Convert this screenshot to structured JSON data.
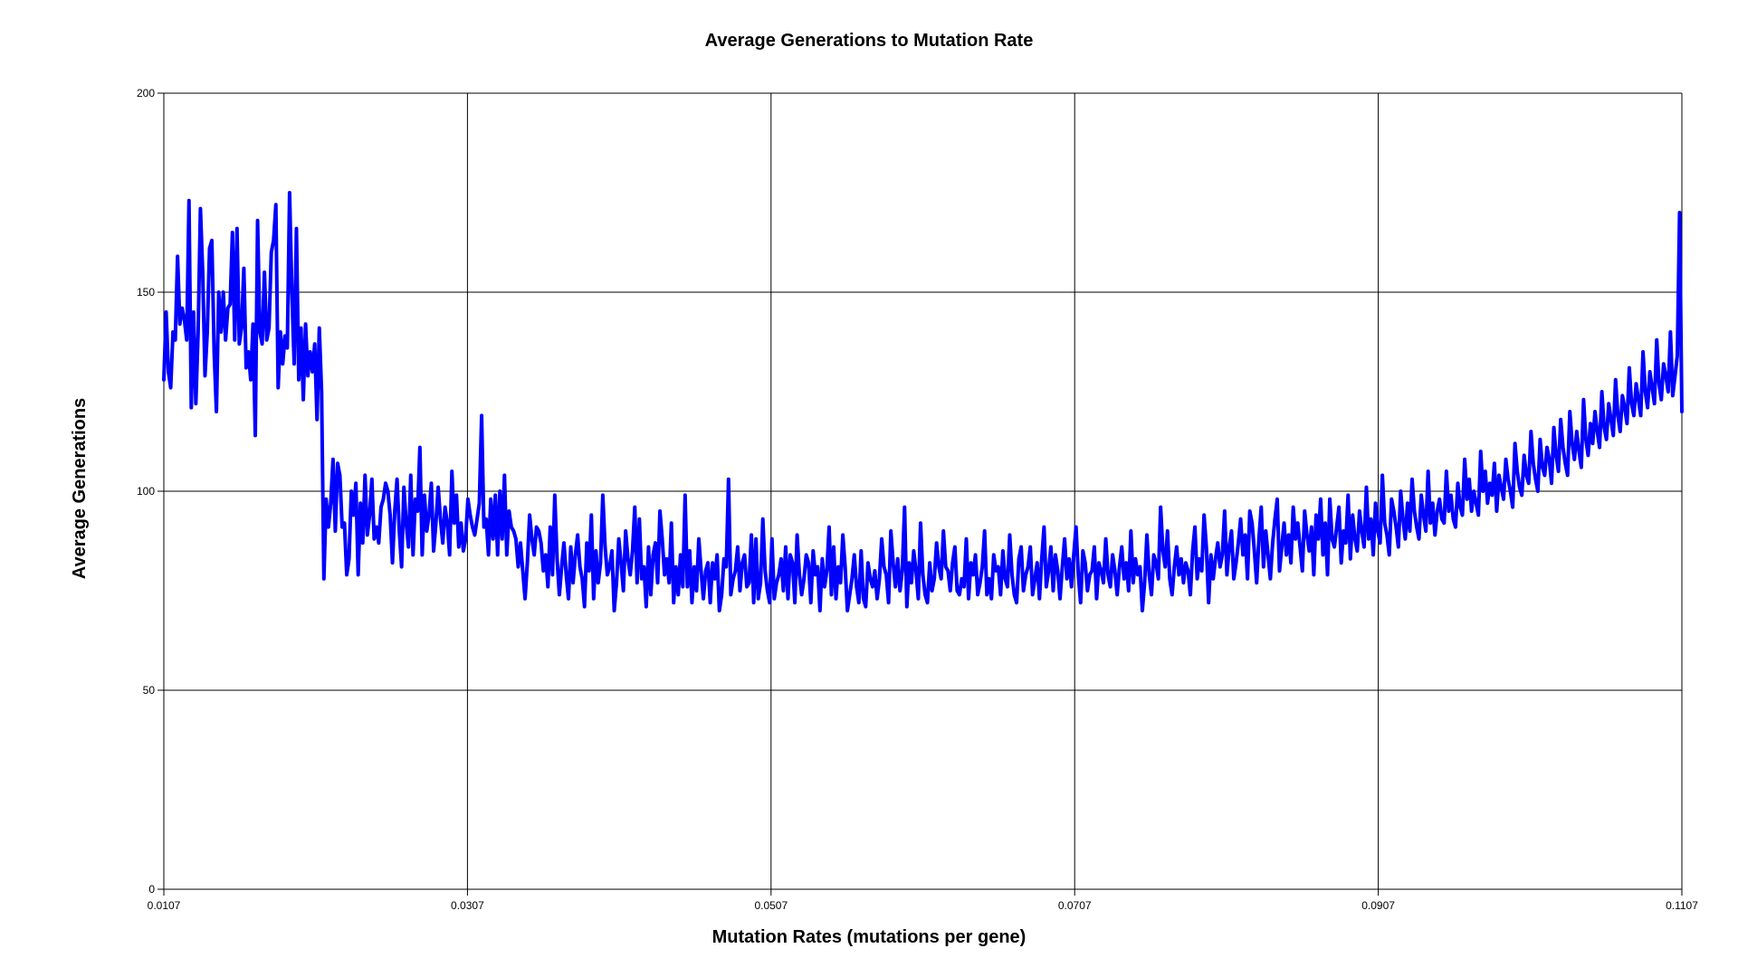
{
  "chart_data": {
    "type": "line",
    "title": "Average Generations to Mutation Rate",
    "xlabel": "Mutation Rates (mutations per gene)",
    "ylabel": "Average Generations",
    "xlim": [
      0.0107,
      0.1107
    ],
    "ylim": [
      0,
      200
    ],
    "x_ticks": [
      "0.0107",
      "0.0307",
      "0.0507",
      "0.0707",
      "0.0907",
      "0.1107"
    ],
    "y_ticks": [
      "0",
      "50",
      "100",
      "150",
      "200"
    ],
    "grid": true,
    "legend": "none",
    "series_color": "#0000ff",
    "series": [
      {
        "x_start": 0.0107,
        "x_end": 0.1107,
        "values": [
          128,
          145,
          130,
          126,
          140,
          138,
          159,
          142,
          146,
          143,
          138,
          173,
          121,
          145,
          122,
          140,
          171,
          155,
          129,
          140,
          161,
          163,
          135,
          120,
          150,
          140,
          150,
          138,
          146,
          147,
          165,
          138,
          166,
          137,
          141,
          156,
          131,
          135,
          128,
          142,
          114,
          168,
          140,
          137,
          155,
          138,
          141,
          160,
          163,
          172,
          126,
          140,
          132,
          139,
          136,
          175,
          150,
          132,
          166,
          128,
          141,
          123,
          142,
          129,
          135,
          130,
          137,
          118,
          141,
          125,
          78,
          98,
          91,
          97,
          108,
          90,
          107,
          104,
          91,
          92,
          79,
          83,
          100,
          94,
          102,
          79,
          97,
          87,
          104,
          89,
          94,
          103,
          88,
          91,
          87,
          96,
          98,
          102,
          100,
          94,
          82,
          95,
          103,
          90,
          81,
          101,
          92,
          86,
          104,
          84,
          98,
          95,
          111,
          84,
          99,
          90,
          94,
          102,
          85,
          92,
          101,
          93,
          87,
          96,
          92,
          84,
          105,
          92,
          99,
          86,
          92,
          85,
          88,
          98,
          94,
          91,
          89,
          93,
          97,
          119,
          91,
          93,
          84,
          98,
          88,
          99,
          84,
          100,
          88,
          104,
          84,
          95,
          91,
          90,
          88,
          81,
          87,
          80,
          73,
          82,
          94,
          88,
          84,
          91,
          90,
          87,
          80,
          84,
          76,
          91,
          79,
          99,
          83,
          74,
          81,
          87,
          79,
          73,
          86,
          77,
          84,
          89,
          81,
          78,
          71,
          87,
          80,
          94,
          73,
          85,
          77,
          82,
          99,
          86,
          79,
          81,
          85,
          70,
          77,
          88,
          82,
          75,
          90,
          83,
          79,
          85,
          96,
          77,
          93,
          78,
          81,
          71,
          86,
          74,
          84,
          87,
          77,
          95,
          88,
          79,
          83,
          77,
          92,
          72,
          81,
          74,
          84,
          76,
          99,
          76,
          85,
          72,
          81,
          75,
          88,
          80,
          73,
          80,
          82,
          72,
          82,
          78,
          84,
          70,
          74,
          83,
          81,
          103,
          74,
          78,
          80,
          86,
          75,
          82,
          84,
          76,
          77,
          89,
          72,
          88,
          73,
          77,
          93,
          80,
          75,
          72,
          88,
          73,
          77,
          79,
          83,
          75,
          86,
          73,
          84,
          82,
          72,
          89,
          79,
          74,
          78,
          84,
          82,
          72,
          85,
          79,
          81,
          70,
          83,
          76,
          80,
          91,
          74,
          86,
          73,
          81,
          77,
          89,
          81,
          70,
          74,
          78,
          84,
          76,
          72,
          85,
          73,
          71,
          82,
          78,
          76,
          80,
          73,
          78,
          88,
          81,
          79,
          72,
          90,
          82,
          76,
          83,
          75,
          80,
          96,
          71,
          82,
          77,
          85,
          80,
          73,
          92,
          79,
          74,
          72,
          82,
          75,
          78,
          87,
          81,
          78,
          90,
          81,
          80,
          75,
          82,
          86,
          75,
          74,
          78,
          76,
          88,
          73,
          82,
          79,
          84,
          74,
          77,
          81,
          90,
          74,
          78,
          73,
          84,
          80,
          81,
          74,
          85,
          78,
          76,
          89,
          79,
          74,
          72,
          83,
          86,
          75,
          79,
          81,
          86,
          74,
          78,
          82,
          73,
          83,
          91,
          76,
          80,
          86,
          75,
          84,
          80,
          73,
          81,
          88,
          78,
          83,
          76,
          84,
          91,
          79,
          72,
          85,
          82,
          75,
          79,
          80,
          86,
          73,
          82,
          80,
          77,
          88,
          79,
          76,
          84,
          80,
          74,
          81,
          86,
          78,
          82,
          75,
          90,
          77,
          83,
          79,
          81,
          70,
          77,
          89,
          79,
          74,
          84,
          82,
          78,
          96,
          85,
          81,
          90,
          78,
          74,
          81,
          86,
          79,
          83,
          77,
          82,
          80,
          74,
          85,
          91,
          78,
          83,
          80,
          94,
          86,
          72,
          84,
          78,
          83,
          87,
          81,
          84,
          95,
          79,
          86,
          90,
          78,
          82,
          87,
          93,
          84,
          89,
          78,
          95,
          92,
          85,
          77,
          88,
          96,
          81,
          90,
          84,
          78,
          87,
          93,
          98,
          80,
          86,
          92,
          84,
          89,
          82,
          96,
          88,
          92,
          86,
          80,
          95,
          89,
          85,
          91,
          79,
          94,
          88,
          98,
          84,
          92,
          79,
          98,
          88,
          86,
          91,
          96,
          82,
          90,
          87,
          99,
          83,
          94,
          88,
          85,
          95,
          90,
          86,
          101,
          88,
          93,
          84,
          97,
          90,
          87,
          104,
          92,
          89,
          84,
          98,
          95,
          91,
          86,
          100,
          93,
          88,
          97,
          90,
          103,
          95,
          91,
          88,
          99,
          94,
          90,
          105,
          92,
          97,
          89,
          95,
          98,
          93,
          92,
          105,
          95,
          99,
          93,
          91,
          102,
          96,
          94,
          108,
          98,
          103,
          95,
          100,
          97,
          94,
          110,
          100,
          105,
          97,
          102,
          99,
          107,
          95,
          104,
          101,
          98,
          108,
          103,
          100,
          96,
          112,
          105,
          101,
          99,
          109,
          104,
          102,
          115,
          107,
          103,
          100,
          113,
          106,
          104,
          111,
          108,
          102,
          116,
          109,
          105,
          118,
          111,
          107,
          104,
          120,
          112,
          108,
          115,
          110,
          106,
          123,
          113,
          109,
          117,
          112,
          120,
          115,
          111,
          125,
          116,
          113,
          122,
          118,
          114,
          128,
          119,
          115,
          124,
          121,
          117,
          131,
          122,
          119,
          127,
          123,
          119,
          135,
          125,
          121,
          130,
          126,
          122,
          138,
          127,
          123,
          132,
          129,
          125,
          140,
          124,
          129,
          134,
          170,
          120
        ]
      }
    ]
  }
}
